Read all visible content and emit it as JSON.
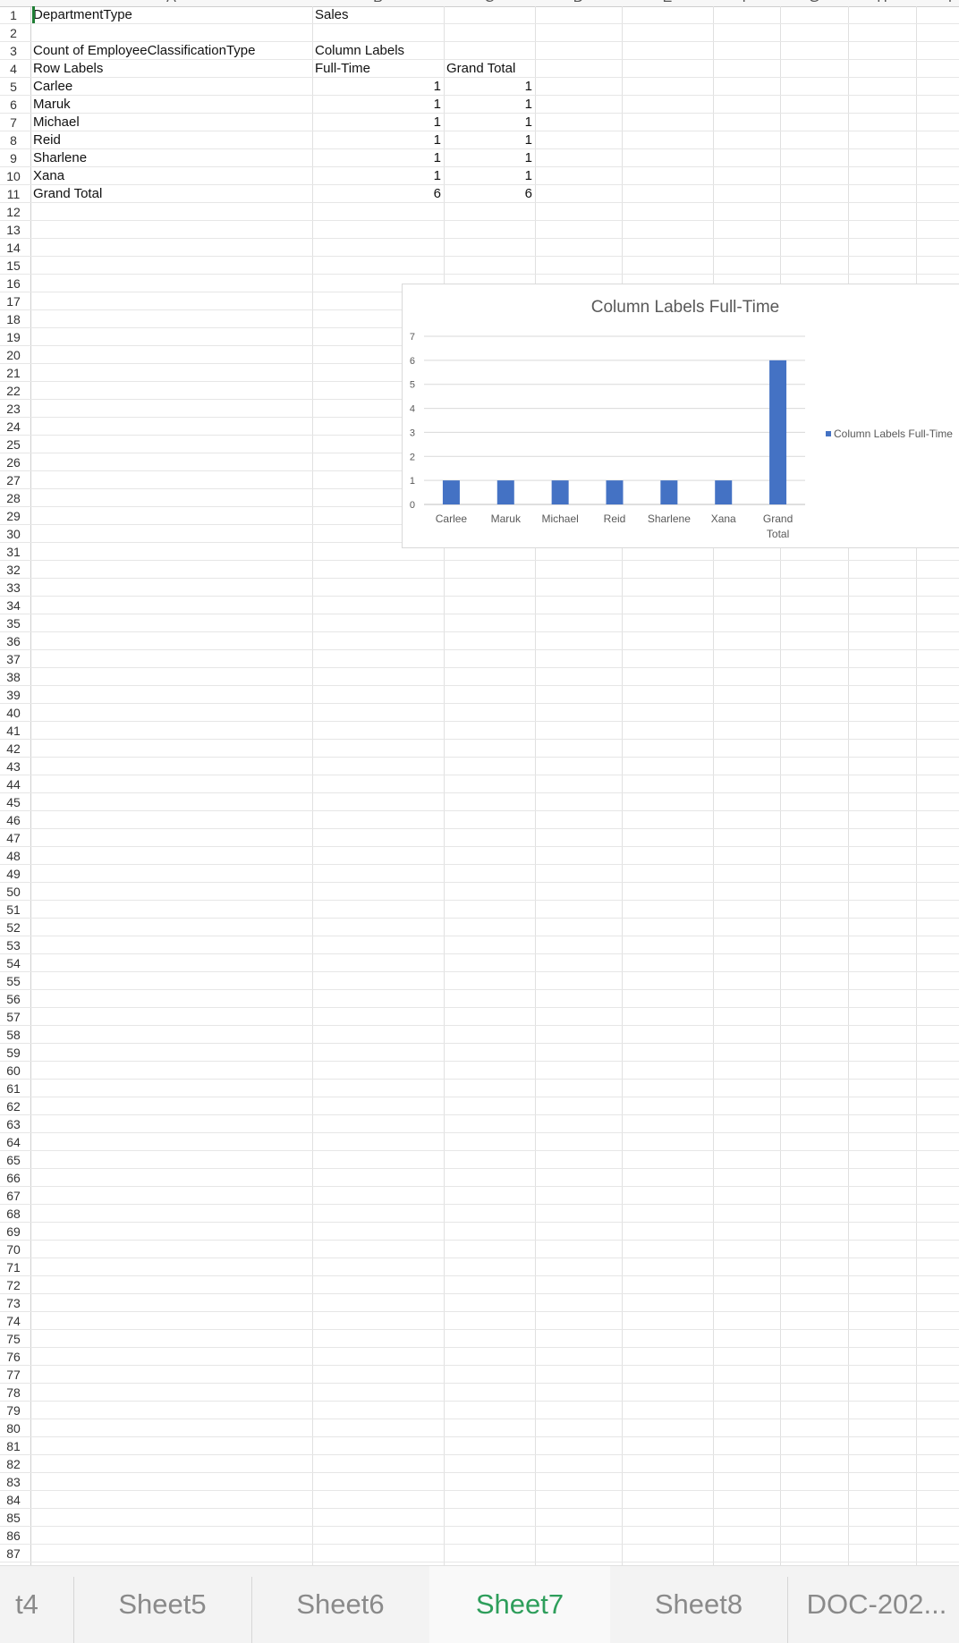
{
  "columns": [
    "A",
    "B",
    "C",
    "D",
    "E",
    "F",
    "G",
    "H",
    "I"
  ],
  "rows_visible": 88,
  "cells": {
    "A1": "DepartmentType",
    "B1": "Sales",
    "A3": "Count of EmployeeClassificationType",
    "B3": "Column Labels",
    "A4": "Row Labels",
    "B4": "Full-Time",
    "C4": "Grand Total",
    "A5": "Carlee",
    "B5": "1",
    "C5": "1",
    "A6": "Maruk",
    "B6": "1",
    "C6": "1",
    "A7": "Michael",
    "B7": "1",
    "C7": "1",
    "A8": "Reid",
    "B8": "1",
    "C8": "1",
    "A9": "Sharlene",
    "B9": "1",
    "C9": "1",
    "A10": "Xana",
    "B10": "1",
    "C10": "1",
    "A11": "Grand Total",
    "B11": "6",
    "C11": "6"
  },
  "chart_data": {
    "type": "bar",
    "title": "Column Labels Full-Time",
    "categories": [
      "Carlee",
      "Maruk",
      "Michael",
      "Reid",
      "Sharlene",
      "Xana",
      "Grand Total"
    ],
    "series": [
      {
        "name": "Column Labels Full-Time",
        "values": [
          1,
          1,
          1,
          1,
          1,
          1,
          6
        ],
        "color": "#4472c4"
      }
    ],
    "ylim": [
      0,
      7
    ],
    "yticks": [
      "0",
      "1",
      "2",
      "3",
      "4",
      "5",
      "6",
      "7"
    ],
    "grid": true,
    "legend": "right"
  },
  "sheet_tabs": [
    {
      "label": "t4",
      "active": false
    },
    {
      "label": "Sheet5",
      "active": false
    },
    {
      "label": "Sheet6",
      "active": false
    },
    {
      "label": "Sheet7",
      "active": true
    },
    {
      "label": "Sheet8",
      "active": false
    },
    {
      "label": "DOC-202...",
      "active": false
    }
  ],
  "colors": {
    "accent": "#2e9e5b",
    "bar": "#4472c4",
    "cursor": "#1e7e34"
  }
}
